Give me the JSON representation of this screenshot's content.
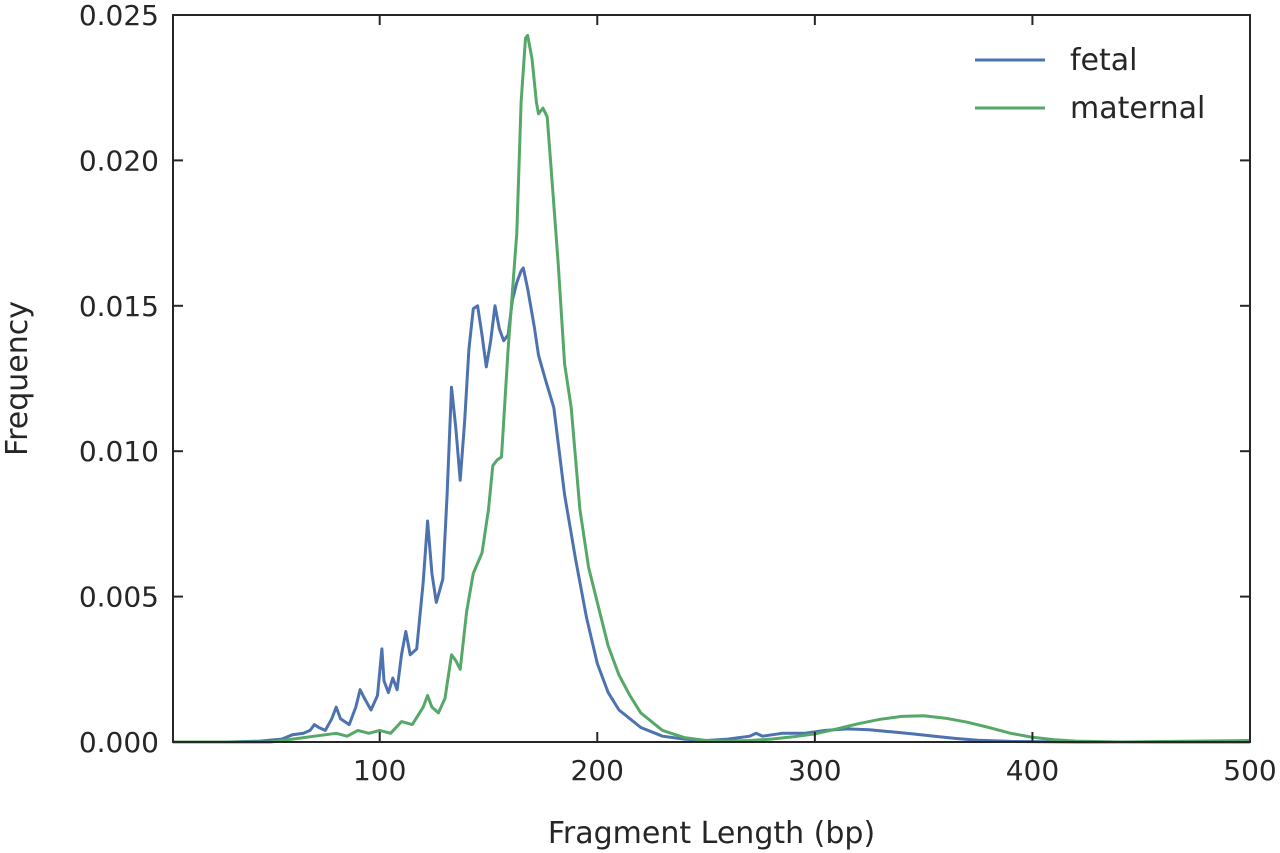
{
  "chart_data": {
    "type": "line",
    "xlabel": "Fragment Length (bp)",
    "ylabel": "Frequency",
    "xlim": [
      5,
      500
    ],
    "ylim": [
      0,
      0.025
    ],
    "xticks": [
      {
        "value": 100,
        "label": "100"
      },
      {
        "value": 200,
        "label": "200"
      },
      {
        "value": 300,
        "label": "300"
      },
      {
        "value": 400,
        "label": "400"
      },
      {
        "value": 500,
        "label": "500"
      }
    ],
    "yticks": [
      {
        "value": 0,
        "label": "0.000"
      },
      {
        "value": 0.005,
        "label": "0.005"
      },
      {
        "value": 0.01,
        "label": "0.010"
      },
      {
        "value": 0.015,
        "label": "0.015"
      },
      {
        "value": 0.02,
        "label": "0.020"
      },
      {
        "value": 0.025,
        "label": "0.025"
      }
    ],
    "grid": false,
    "legend_position": "top-right",
    "series": [
      {
        "name": "fetal",
        "color": "#4c72b0",
        "points": [
          [
            5,
            0
          ],
          [
            30,
            0
          ],
          [
            45,
            3e-05
          ],
          [
            55,
            0.0001
          ],
          [
            60,
            0.00025
          ],
          [
            65,
            0.0003
          ],
          [
            68,
            0.0004
          ],
          [
            70,
            0.0006
          ],
          [
            72,
            0.0005
          ],
          [
            75,
            0.0004
          ],
          [
            78,
            0.0008
          ],
          [
            80,
            0.0012
          ],
          [
            82,
            0.0008
          ],
          [
            86,
            0.0006
          ],
          [
            89,
            0.0012
          ],
          [
            91,
            0.0018
          ],
          [
            93,
            0.0015
          ],
          [
            96,
            0.0011
          ],
          [
            99,
            0.0016
          ],
          [
            101,
            0.0032
          ],
          [
            102,
            0.0021
          ],
          [
            104,
            0.0017
          ],
          [
            106,
            0.0022
          ],
          [
            108,
            0.0018
          ],
          [
            110,
            0.003
          ],
          [
            112,
            0.0038
          ],
          [
            114,
            0.003
          ],
          [
            117,
            0.0032
          ],
          [
            120,
            0.0055
          ],
          [
            122,
            0.0076
          ],
          [
            124,
            0.0058
          ],
          [
            126,
            0.0048
          ],
          [
            129,
            0.0056
          ],
          [
            131,
            0.0085
          ],
          [
            133,
            0.0122
          ],
          [
            135,
            0.0108
          ],
          [
            137,
            0.009
          ],
          [
            139,
            0.011
          ],
          [
            141,
            0.0135
          ],
          [
            143,
            0.0149
          ],
          [
            145,
            0.015
          ],
          [
            147,
            0.014
          ],
          [
            149,
            0.0129
          ],
          [
            151,
            0.0138
          ],
          [
            153,
            0.015
          ],
          [
            155,
            0.0142
          ],
          [
            157,
            0.0138
          ],
          [
            159,
            0.014
          ],
          [
            161,
            0.0152
          ],
          [
            163,
            0.0158
          ],
          [
            165,
            0.0162
          ],
          [
            166,
            0.0163
          ],
          [
            168,
            0.0156
          ],
          [
            171,
            0.0143
          ],
          [
            173,
            0.0133
          ],
          [
            176,
            0.0125
          ],
          [
            180,
            0.0115
          ],
          [
            185,
            0.0085
          ],
          [
            190,
            0.0063
          ],
          [
            195,
            0.0043
          ],
          [
            200,
            0.0027
          ],
          [
            205,
            0.0017
          ],
          [
            210,
            0.0011
          ],
          [
            215,
            0.0008
          ],
          [
            220,
            0.0005
          ],
          [
            230,
            0.0002
          ],
          [
            240,
            0.0001
          ],
          [
            250,
            5e-05
          ],
          [
            260,
            0.0001
          ],
          [
            270,
            0.0002
          ],
          [
            273,
            0.0003
          ],
          [
            276,
            0.0002
          ],
          [
            285,
            0.0003
          ],
          [
            295,
            0.0003
          ],
          [
            305,
            0.0004
          ],
          [
            315,
            0.00045
          ],
          [
            325,
            0.00042
          ],
          [
            335,
            0.00035
          ],
          [
            345,
            0.00028
          ],
          [
            355,
            0.0002
          ],
          [
            365,
            0.00012
          ],
          [
            375,
            6e-05
          ],
          [
            390,
            2e-05
          ],
          [
            420,
            0
          ],
          [
            500,
            0
          ]
        ]
      },
      {
        "name": "maternal",
        "color": "#55a868",
        "points": [
          [
            5,
            0
          ],
          [
            50,
            0
          ],
          [
            60,
            0.0001
          ],
          [
            70,
            0.0002
          ],
          [
            80,
            0.0003
          ],
          [
            85,
            0.0002
          ],
          [
            90,
            0.0004
          ],
          [
            95,
            0.0003
          ],
          [
            100,
            0.0004
          ],
          [
            105,
            0.0003
          ],
          [
            110,
            0.0007
          ],
          [
            115,
            0.0006
          ],
          [
            120,
            0.0012
          ],
          [
            122,
            0.0016
          ],
          [
            124,
            0.0012
          ],
          [
            127,
            0.001
          ],
          [
            130,
            0.0015
          ],
          [
            133,
            0.003
          ],
          [
            135,
            0.0028
          ],
          [
            137,
            0.0025
          ],
          [
            140,
            0.0045
          ],
          [
            143,
            0.0058
          ],
          [
            147,
            0.0065
          ],
          [
            150,
            0.008
          ],
          [
            152,
            0.0095
          ],
          [
            154,
            0.0097
          ],
          [
            156,
            0.0098
          ],
          [
            159,
            0.0135
          ],
          [
            163,
            0.0175
          ],
          [
            165,
            0.022
          ],
          [
            167,
            0.0242
          ],
          [
            168,
            0.0243
          ],
          [
            170,
            0.0235
          ],
          [
            172,
            0.022
          ],
          [
            173,
            0.0216
          ],
          [
            175,
            0.0218
          ],
          [
            177,
            0.0215
          ],
          [
            179,
            0.0195
          ],
          [
            182,
            0.0165
          ],
          [
            185,
            0.013
          ],
          [
            188,
            0.0115
          ],
          [
            192,
            0.008
          ],
          [
            196,
            0.006
          ],
          [
            200,
            0.0048
          ],
          [
            205,
            0.0033
          ],
          [
            210,
            0.0023
          ],
          [
            215,
            0.0016
          ],
          [
            220,
            0.001
          ],
          [
            230,
            0.0004
          ],
          [
            240,
            0.00015
          ],
          [
            250,
            5e-05
          ],
          [
            260,
            3e-05
          ],
          [
            270,
            5e-05
          ],
          [
            280,
            0.0001
          ],
          [
            290,
            0.00018
          ],
          [
            300,
            0.00028
          ],
          [
            310,
            0.00045
          ],
          [
            320,
            0.00063
          ],
          [
            330,
            0.00078
          ],
          [
            340,
            0.00088
          ],
          [
            350,
            0.0009
          ],
          [
            360,
            0.00082
          ],
          [
            370,
            0.00068
          ],
          [
            380,
            0.0005
          ],
          [
            390,
            0.0003
          ],
          [
            400,
            0.00016
          ],
          [
            410,
            8e-05
          ],
          [
            420,
            3e-05
          ],
          [
            440,
            0
          ],
          [
            500,
            5e-05
          ]
        ]
      }
    ]
  }
}
